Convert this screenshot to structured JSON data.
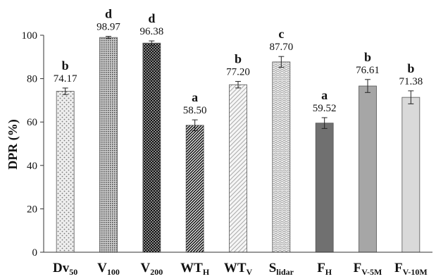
{
  "chart_data": {
    "type": "bar",
    "ylabel": "DPR (%)",
    "ylim": [
      0,
      100
    ],
    "yticks": [
      "0",
      "20",
      "40",
      "60",
      "80",
      "100"
    ],
    "grid": false,
    "categories": [
      {
        "base": "Dv",
        "sub": "50"
      },
      {
        "base": "V",
        "sub": "100"
      },
      {
        "base": "V",
        "sub": "200"
      },
      {
        "base": "WT",
        "sub": "H"
      },
      {
        "base": "WT",
        "sub": "V"
      },
      {
        "base": "S",
        "sub": "lidar"
      },
      {
        "base": "F",
        "sub": "H"
      },
      {
        "base": "F",
        "sub": "V-5M"
      },
      {
        "base": "F",
        "sub": "V-10M"
      }
    ],
    "values": [
      74.17,
      98.97,
      96.38,
      58.5,
      77.2,
      87.7,
      59.52,
      76.61,
      71.38
    ],
    "value_labels": [
      "74.17",
      "98.97",
      "96.38",
      "58.50",
      "77.20",
      "87.70",
      "59.52",
      "76.61",
      "71.38"
    ],
    "errors": [
      1.5,
      0.5,
      1.0,
      2.5,
      1.5,
      2.5,
      2.5,
      3.0,
      3.0
    ],
    "significance": [
      "b",
      "d",
      "d",
      "a",
      "b",
      "c",
      "a",
      "b",
      "b"
    ],
    "bar_fills": [
      {
        "pattern": "dots",
        "fg": "#777777",
        "bg": "#eeeeee"
      },
      {
        "pattern": "dense-dots",
        "fg": "#444444",
        "bg": "#cccccc"
      },
      {
        "pattern": "checker",
        "fg": "#111111",
        "bg": "#888888"
      },
      {
        "pattern": "diag-dark",
        "fg": "#111111",
        "bg": "#ffffff"
      },
      {
        "pattern": "diag-light",
        "fg": "#aaaaaa",
        "bg": "#f6f6f6"
      },
      {
        "pattern": "waves",
        "fg": "#999999",
        "bg": "#eeeeee"
      },
      {
        "pattern": "solid",
        "fg": "#707070",
        "bg": "#707070"
      },
      {
        "pattern": "solid",
        "fg": "#a6a6a6",
        "bg": "#a6a6a6"
      },
      {
        "pattern": "solid",
        "fg": "#d9d9d9",
        "bg": "#d9d9d9"
      }
    ],
    "axis_color": "#333333",
    "bar_edge_color": "#555555"
  }
}
